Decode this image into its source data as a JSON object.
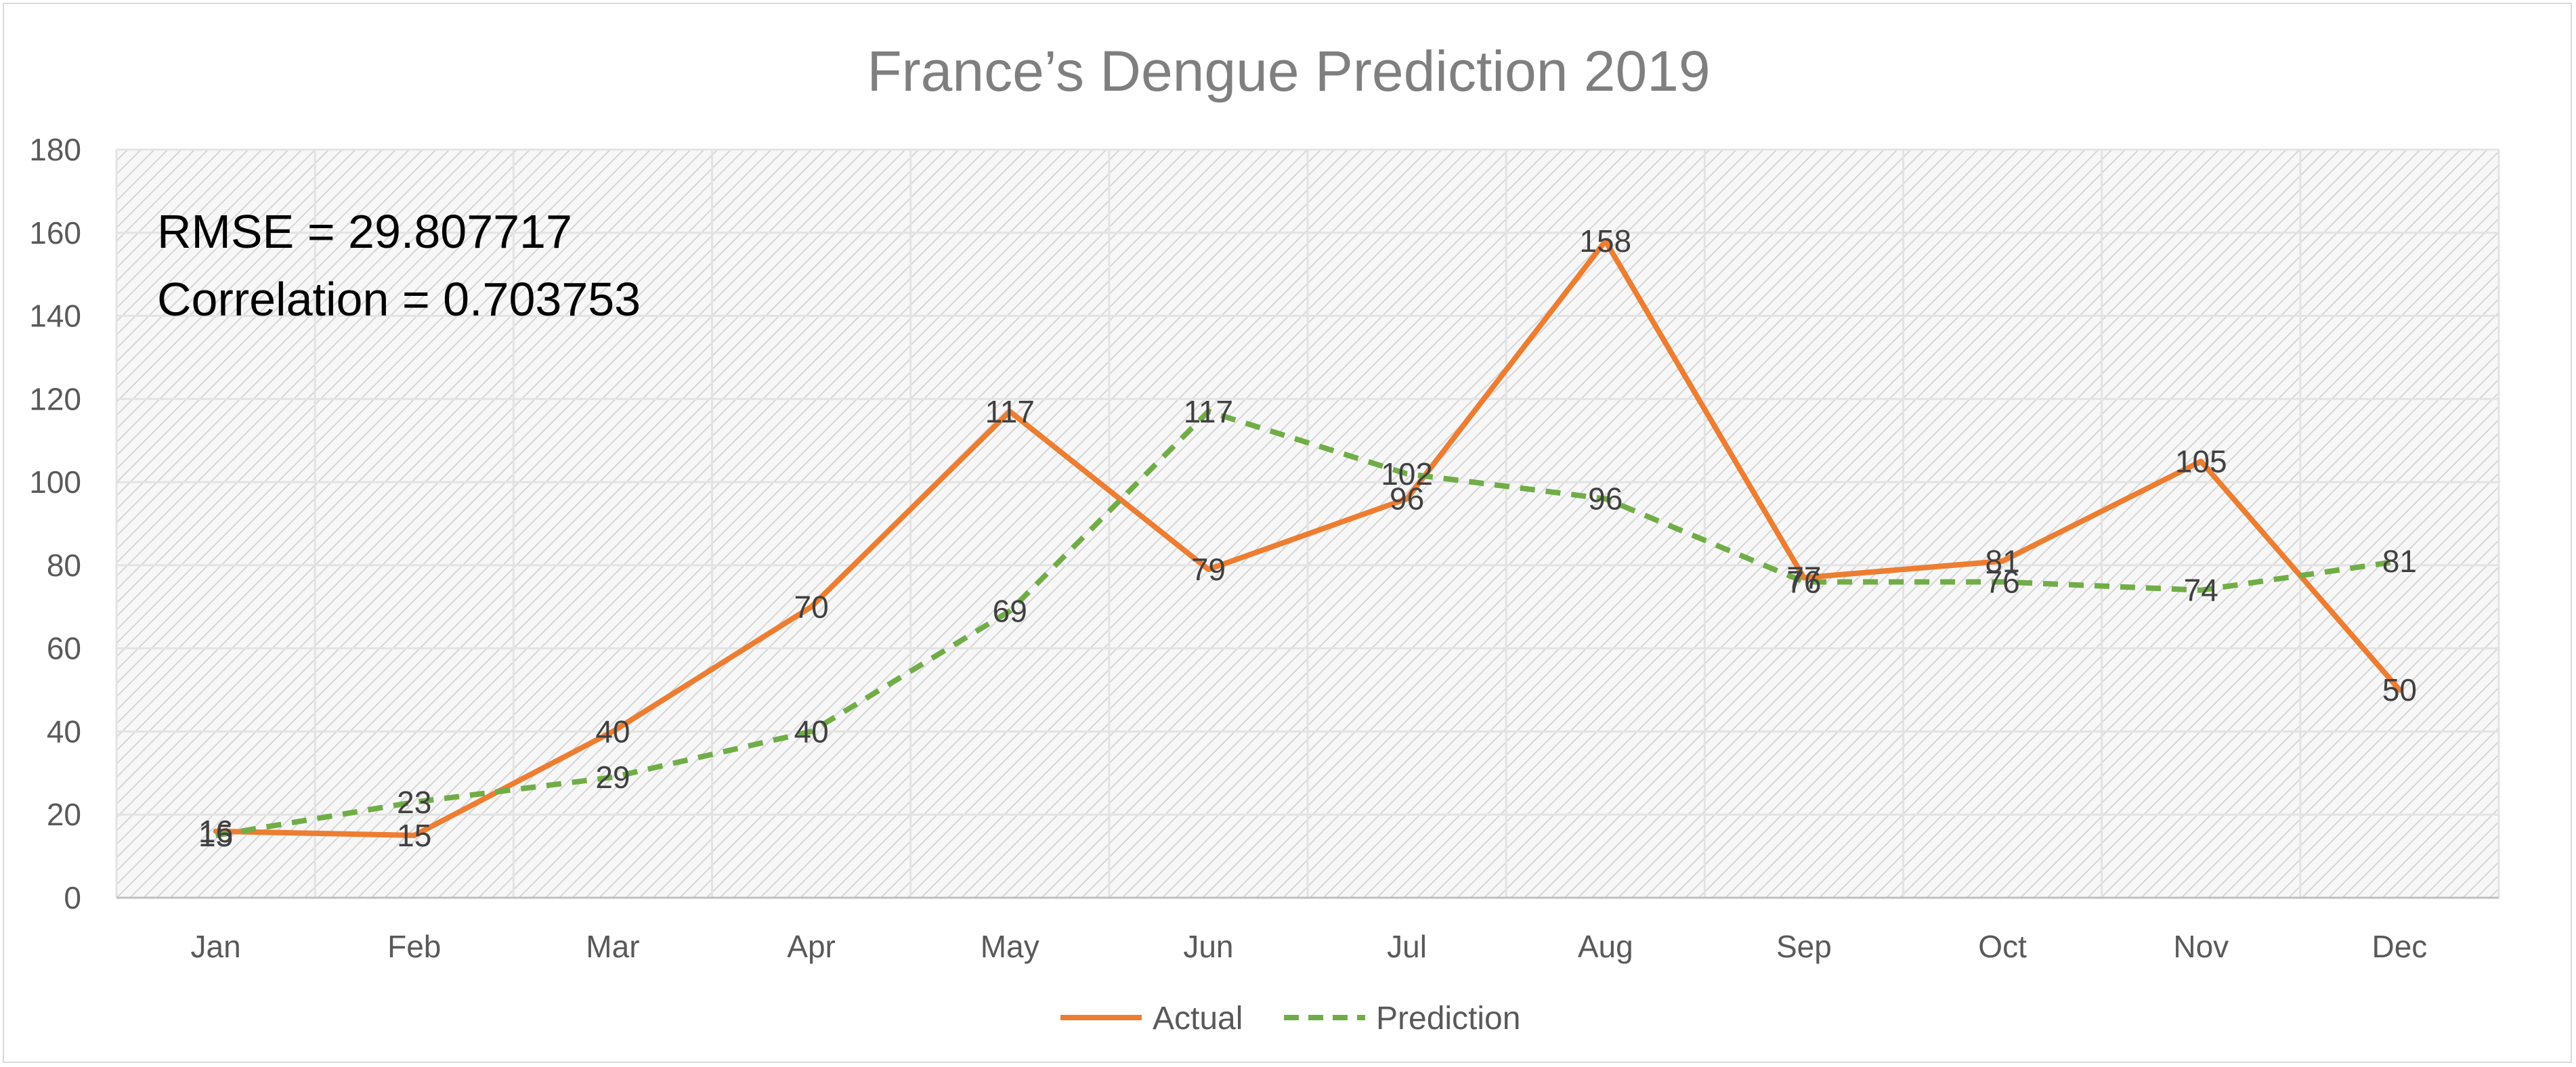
{
  "chart_data": {
    "type": "line",
    "title": "France’s Dengue Prediction 2019",
    "xlabel": "",
    "ylabel": "",
    "categories": [
      "Jan",
      "Feb",
      "Mar",
      "Apr",
      "May",
      "Jun",
      "Jul",
      "Aug",
      "Sep",
      "Oct",
      "Nov",
      "Dec"
    ],
    "ylim": [
      0,
      180
    ],
    "yticks": [
      0,
      20,
      40,
      60,
      80,
      100,
      120,
      140,
      160,
      180
    ],
    "grid": true,
    "legend_position": "bottom",
    "series": [
      {
        "name": "Actual",
        "color": "#ed7d31",
        "line_style": "solid",
        "values": [
          16,
          15,
          40,
          70,
          117,
          79,
          96,
          158,
          77,
          81,
          105,
          50
        ]
      },
      {
        "name": "Prediction",
        "color": "#70ad47",
        "line_style": "dashed",
        "values": [
          15,
          23,
          29,
          40,
          69,
          117,
          102,
          96,
          76,
          76,
          74,
          81
        ]
      }
    ],
    "annotations": [
      "RMSE = 29.807717",
      "Correlation = 0.703753"
    ]
  }
}
